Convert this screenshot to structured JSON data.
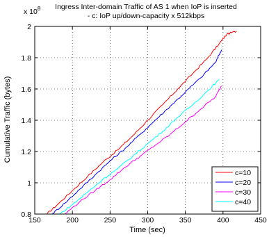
{
  "chart_data": {
    "type": "line",
    "title": "Ingress Inter-domain Traffic of AS 1 when IoP is inserted",
    "subtitle": "- c: IoP up/down-capacity x 512kbps",
    "xlabel": "Time (sec)",
    "ylabel": "Cumulative Traffic (bytes)",
    "y_exponent_label": "x 10",
    "y_exponent_power": "8",
    "xlim": [
      150,
      450
    ],
    "ylim": [
      0.8,
      2.0
    ],
    "xticks": [
      "150",
      "200",
      "250",
      "300",
      "350",
      "400",
      "450"
    ],
    "yticks": [
      "0.8",
      "1",
      "1.2",
      "1.4",
      "1.6",
      "1.8",
      "2"
    ],
    "grid": true,
    "legend_position": "bottom-right",
    "series": [
      {
        "name": "c=10",
        "color": "#ff0000",
        "x": [
          166,
          180,
          200,
          220,
          240,
          260,
          280,
          300,
          320,
          340,
          360,
          380,
          395,
          405,
          418
        ],
        "y": [
          0.8,
          0.86,
          0.95,
          1.04,
          1.13,
          1.21,
          1.3,
          1.4,
          1.5,
          1.6,
          1.7,
          1.8,
          1.89,
          1.95,
          1.97
        ]
      },
      {
        "name": "c=20",
        "color": "#0000ff",
        "x": [
          173,
          190,
          210,
          230,
          250,
          270,
          290,
          310,
          330,
          350,
          370,
          390,
          398
        ],
        "y": [
          0.8,
          0.87,
          0.96,
          1.05,
          1.14,
          1.22,
          1.31,
          1.4,
          1.49,
          1.58,
          1.67,
          1.77,
          1.85
        ]
      },
      {
        "name": "c=30",
        "color": "#ff00ff",
        "x": [
          190,
          210,
          230,
          250,
          270,
          290,
          310,
          330,
          350,
          370,
          390,
          398
        ],
        "y": [
          0.8,
          0.88,
          0.95,
          1.02,
          1.1,
          1.17,
          1.24,
          1.31,
          1.39,
          1.47,
          1.55,
          1.62
        ]
      },
      {
        "name": "c=40",
        "color": "#00ffff",
        "x": [
          183,
          200,
          220,
          240,
          260,
          280,
          300,
          320,
          340,
          360,
          380,
          395
        ],
        "y": [
          0.8,
          0.86,
          0.94,
          1.02,
          1.09,
          1.17,
          1.25,
          1.33,
          1.42,
          1.5,
          1.59,
          1.66
        ]
      }
    ]
  }
}
